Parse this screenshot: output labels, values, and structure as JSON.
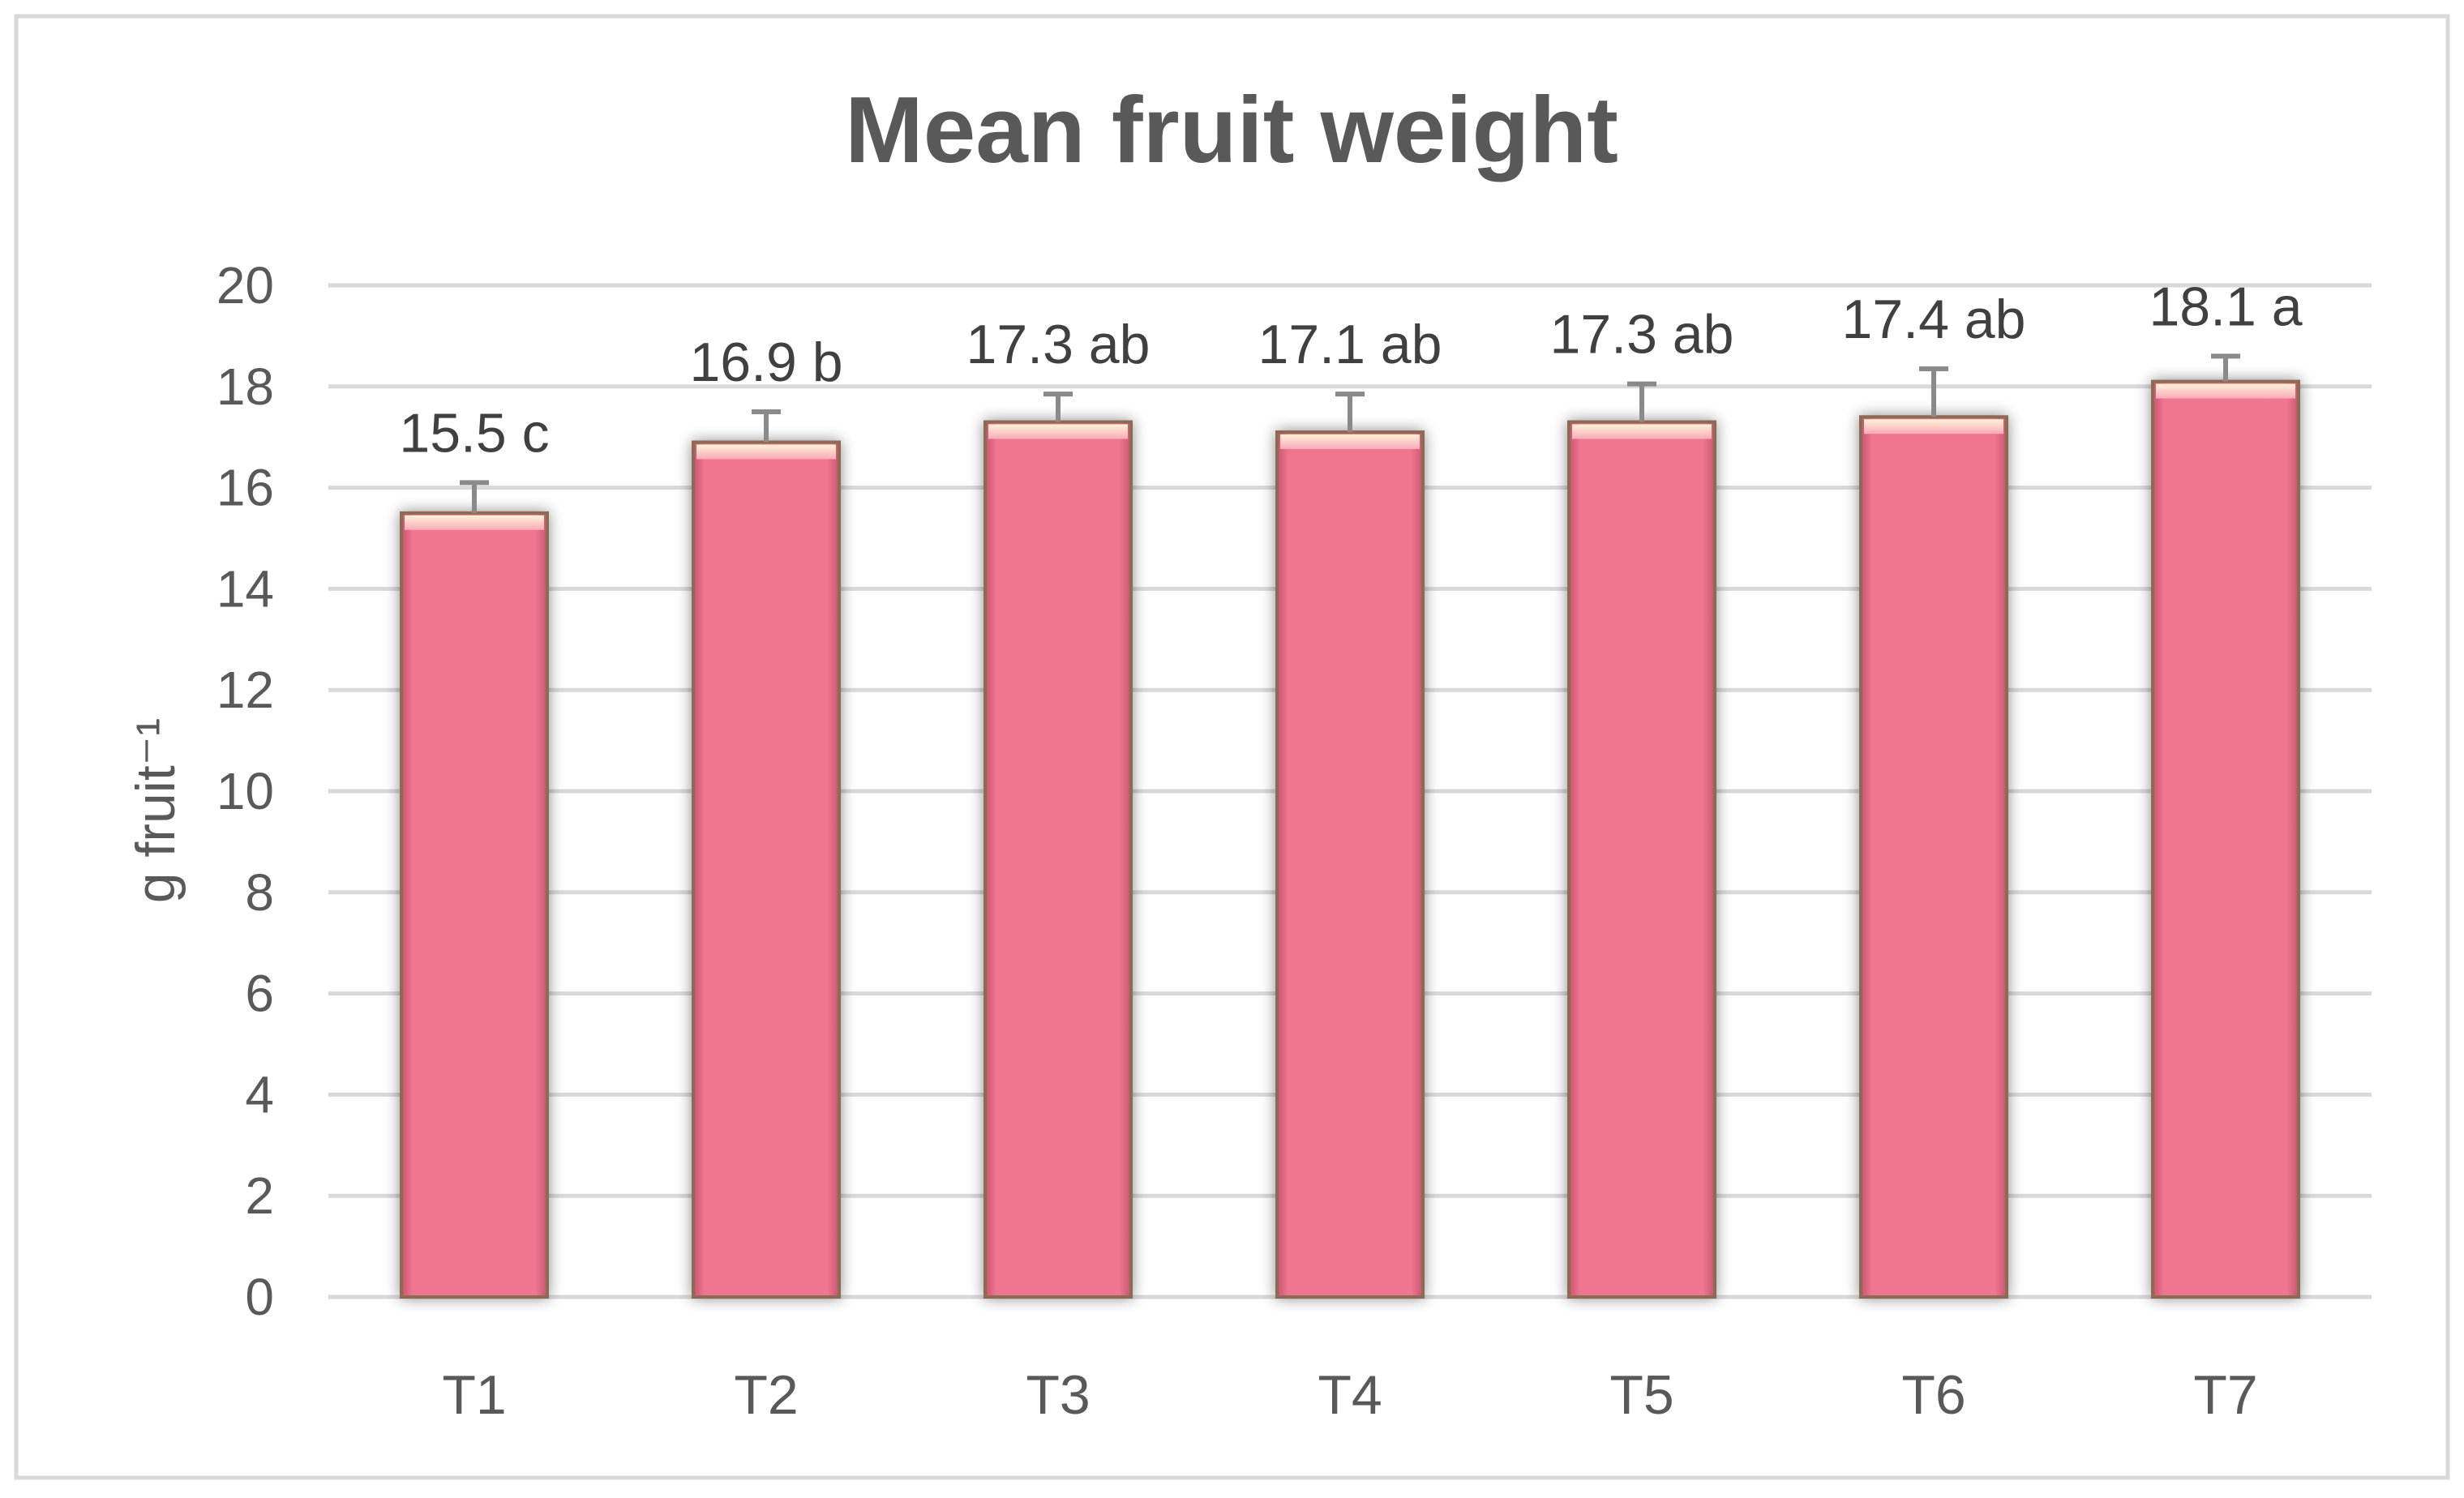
{
  "chart_data": {
    "type": "bar",
    "title": "Mean fruit weight",
    "xlabel": "",
    "ylabel": "g fruit⁻¹",
    "categories": [
      "T1",
      "T2",
      "T3",
      "T4",
      "T5",
      "T6",
      "T7"
    ],
    "series": [
      {
        "values": [
          15.5,
          16.9,
          17.3,
          17.1,
          17.3,
          17.4,
          18.1
        ],
        "error": [
          0.6,
          0.6,
          0.55,
          0.75,
          0.75,
          0.95,
          0.5
        ],
        "labels": [
          "15.5 c",
          "16.9 b",
          "17.3 ab",
          "17.1 ab",
          "17.3 ab",
          "17.4 ab",
          "18.1 a"
        ]
      }
    ],
    "ylim": [
      0,
      20
    ],
    "yticks": [
      0,
      2,
      4,
      6,
      8,
      10,
      12,
      14,
      16,
      18,
      20
    ],
    "grid": true,
    "legend": "none",
    "colors": {
      "bar": "#f07690",
      "bar_highlight": "#fbd3dc",
      "bar_edge": "#8c6a52",
      "error_bar": "#8a8a8a",
      "grid": "#d9d9d9",
      "text": "#595959",
      "title": "#595959",
      "border": "#d9d9d9"
    }
  }
}
